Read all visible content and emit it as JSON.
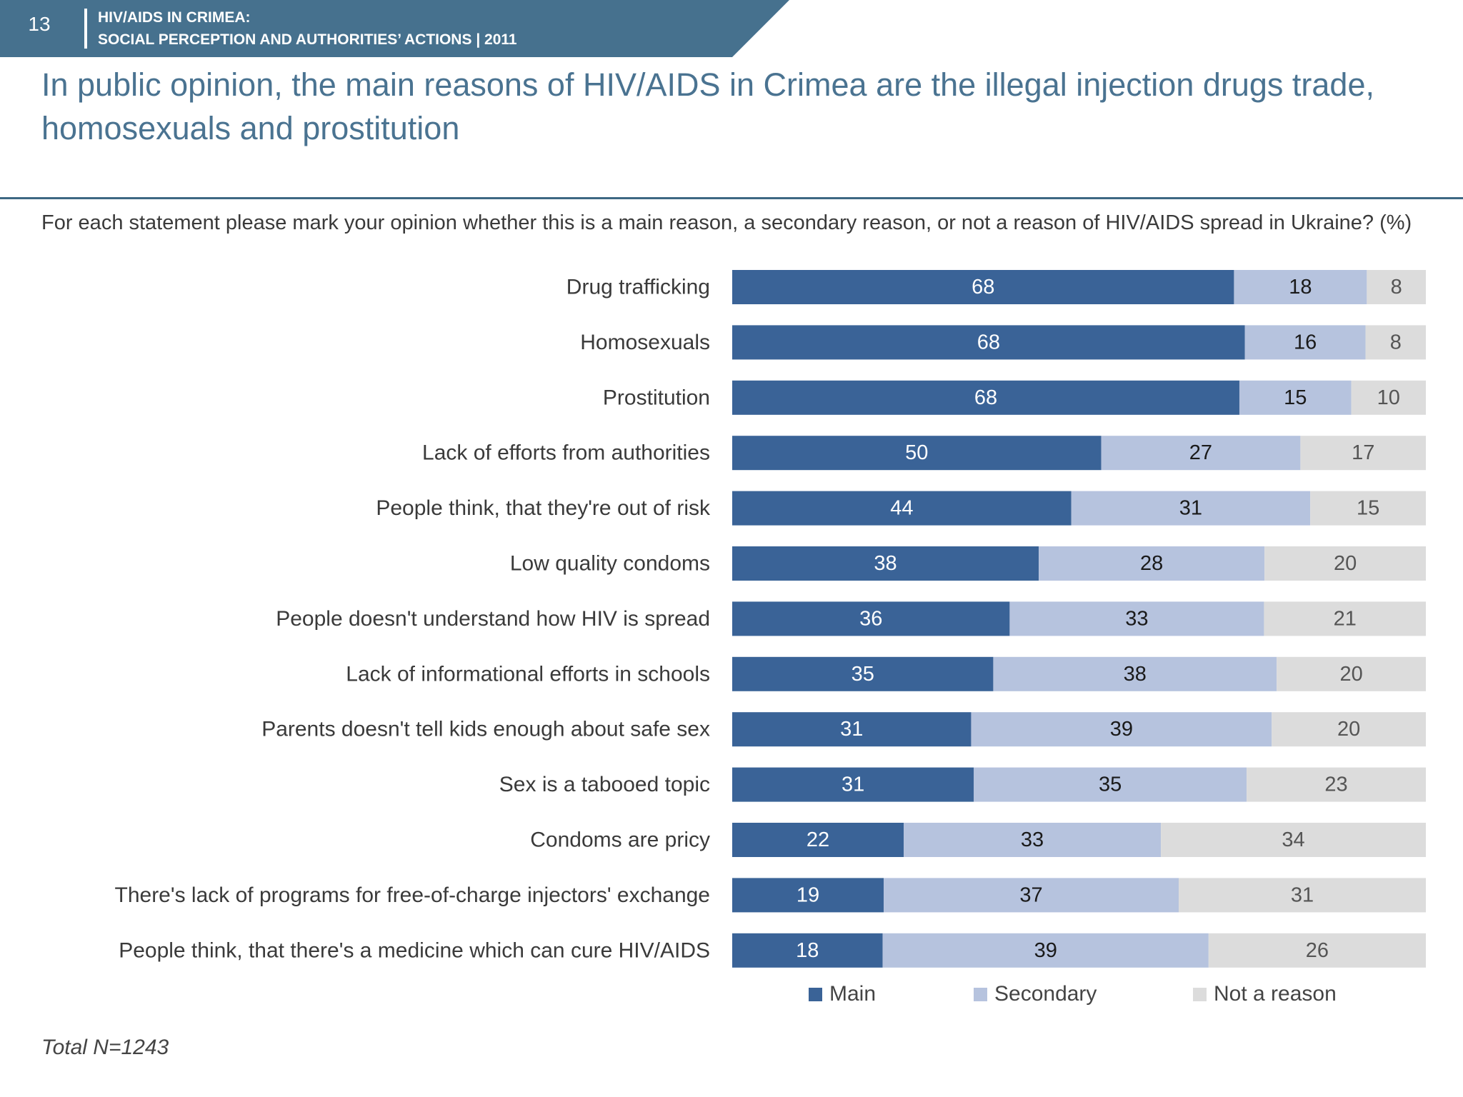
{
  "header": {
    "slide_number": "13",
    "line1": "HIV/AIDS IN CRIMEA:",
    "line2": "SOCIAL PERCEPTION AND AUTHORITIES’ ACTIONS  |  2011"
  },
  "title": "In public opinion, the main reasons of HIV/AIDS in Crimea are the illegal injection drugs trade, homosexuals and prostitution",
  "question": "For each statement please mark your opinion whether this is a main reason, a secondary reason, or not a reason of HIV/AIDS spread in Ukraine? (%)",
  "footnote": "Total N=1243",
  "colors": {
    "banner": "#46718e",
    "title": "#4a7391",
    "main": "#3a6397",
    "secondary": "#b6c3de",
    "not_a_reason": "#dcdcdc"
  },
  "chart_data": {
    "type": "bar",
    "orientation": "horizontal",
    "stacked": true,
    "categories": [
      "Drug trafficking",
      "Homosexuals",
      "Prostitution",
      "Lack of efforts from authorities",
      "People think, that they're out of risk",
      "Low quality condoms",
      "People doesn't understand how HIV is spread",
      "Lack of informational efforts in schools",
      "Parents doesn't tell kids enough about safe sex",
      "Sex is a tabooed topic",
      "Condoms are pricy",
      "There's lack of programs for free-of-charge injectors' exchange",
      "People think, that there's a medicine which can cure HIV/AIDS"
    ],
    "series": [
      {
        "name": "Main",
        "values": [
          68,
          68,
          68,
          50,
          44,
          38,
          36,
          35,
          31,
          31,
          22,
          19,
          18
        ]
      },
      {
        "name": "Secondary",
        "values": [
          18,
          16,
          15,
          27,
          31,
          28,
          33,
          38,
          39,
          35,
          33,
          37,
          39
        ]
      },
      {
        "name": "Not a reason",
        "values": [
          8,
          8,
          10,
          17,
          15,
          20,
          21,
          20,
          20,
          23,
          34,
          31,
          26
        ]
      }
    ],
    "legend_position": "bottom",
    "grid": false,
    "data_labels": true
  }
}
